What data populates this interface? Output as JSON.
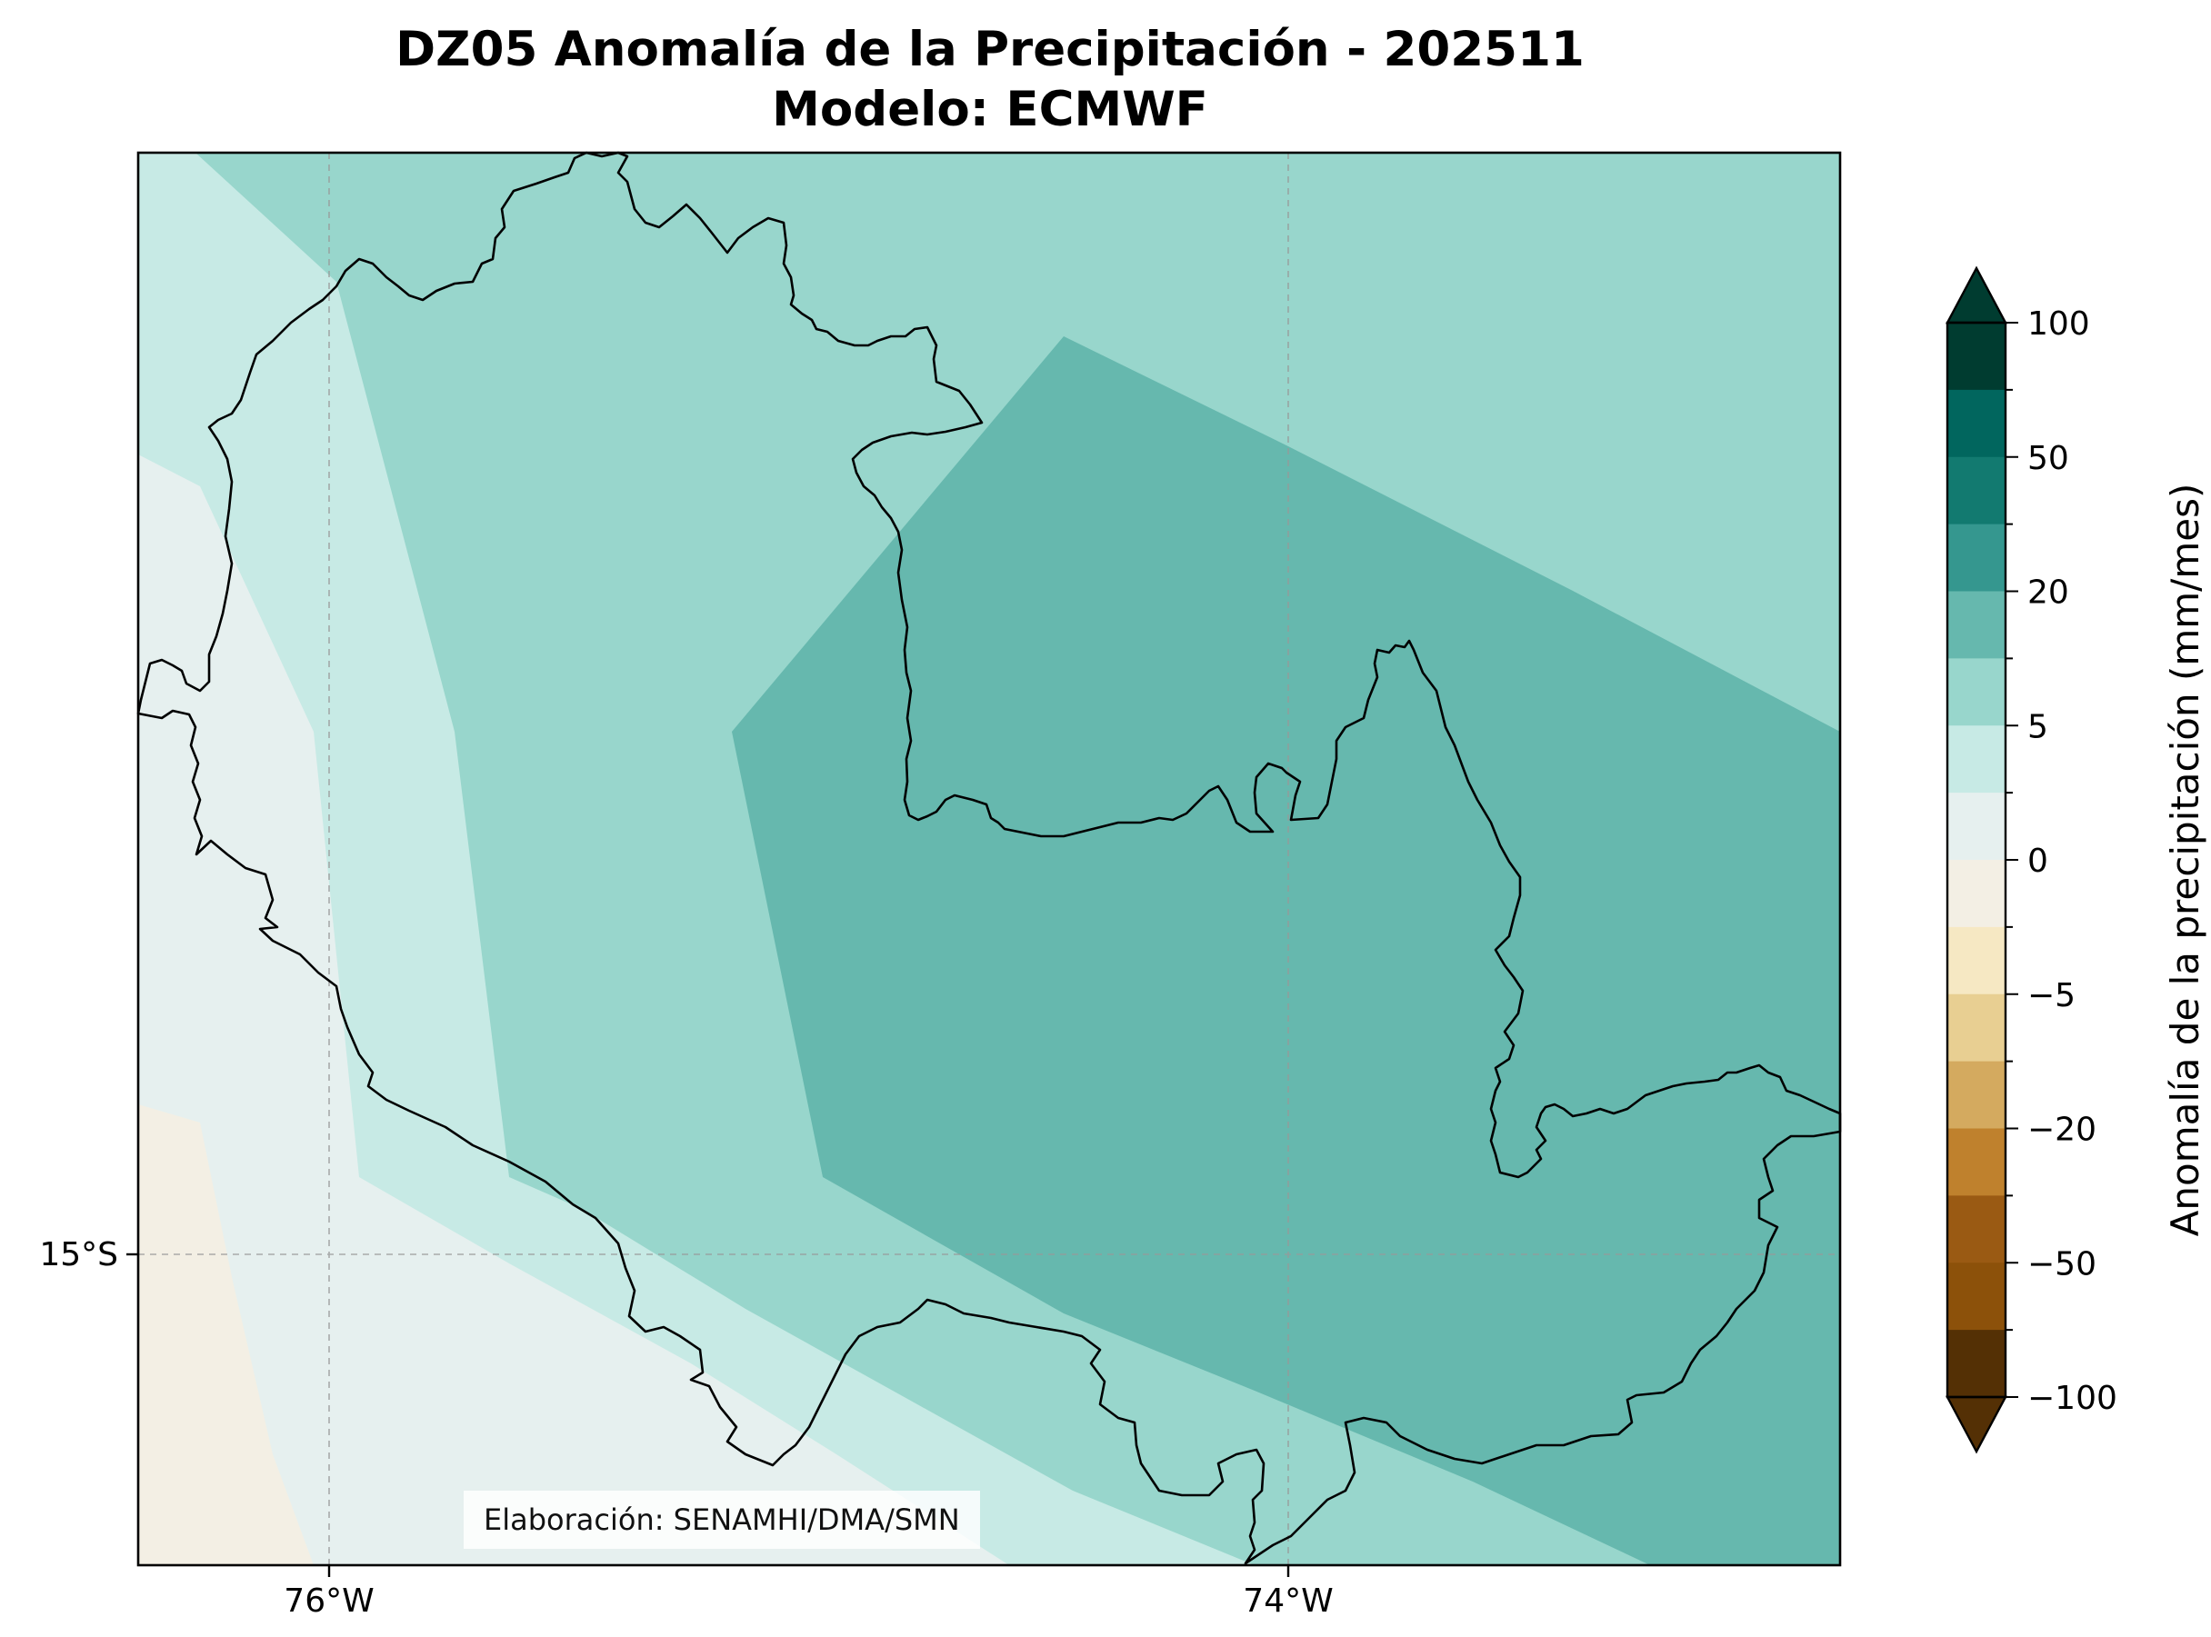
{
  "title": {
    "line1": "DZ05 Anomalía de la Precipitación - 202511",
    "line2": "Modelo: ECMWF"
  },
  "axes": {
    "x_ticks": [
      "76°W",
      "74°W"
    ],
    "y_ticks": [
      "15°S"
    ]
  },
  "colorbar": {
    "label": "Anomalía de la precipitación (mm/mes)",
    "tick_labels": [
      "100",
      "50",
      "20",
      "5",
      "0",
      "−5",
      "−20",
      "−50",
      "−100"
    ],
    "levels_top_to_bottom": [
      100,
      50,
      20,
      5,
      0,
      -5,
      -20,
      -50,
      -100
    ],
    "colors_top_to_bottom": [
      "#003c30",
      "#01665e",
      "#127a70",
      "#35978f",
      "#66b8ae",
      "#98d6cc",
      "#c7eae5",
      "#e6f0ef",
      "#f3efe4",
      "#f6e8c3",
      "#e8cf92",
      "#d4aa5f",
      "#bf812d",
      "#9a5a13",
      "#8c510a",
      "#543005"
    ],
    "extend": "both"
  },
  "chart_data": {
    "type": "filled-contour-map",
    "variable": "Anomalía de la precipitación",
    "units": "mm/mes",
    "region": "DZ05",
    "period": "202511",
    "model": "ECMWF",
    "lon_ticks": [
      -76,
      -74
    ],
    "lat_ticks": [
      -15
    ],
    "field_classes_west_to_east": [
      {
        "range": "-5 to 0",
        "color": "#f3efe4",
        "location": "southwest ocean corner"
      },
      {
        "range": "0 to 2",
        "color": "#e6f0ef",
        "location": "coastal strip"
      },
      {
        "range": "2 to 5",
        "color": "#c7eae5",
        "location": "near coast"
      },
      {
        "range": "5 to 10",
        "color": "#98d6cc",
        "location": "central and northern area"
      },
      {
        "range": "10 to 20",
        "color": "#66b8ae",
        "location": "eastern interior"
      }
    ],
    "grid": true
  },
  "credit": "Elaboración: SENAMHI/DMA/SMN"
}
